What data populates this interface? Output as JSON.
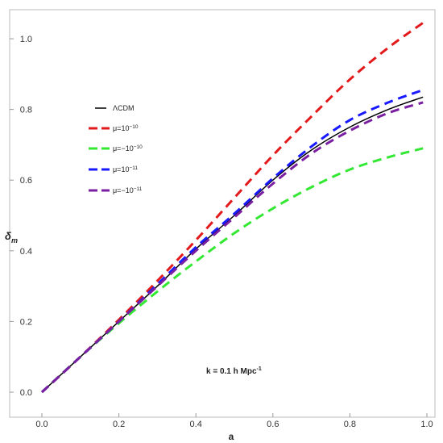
{
  "chart_data": {
    "type": "line",
    "xlabel": "a",
    "ylabel_main": "δ",
    "ylabel_sub": "m",
    "xlim": [
      0.0,
      1.0
    ],
    "ylim": [
      0.0,
      1.08
    ],
    "x_ticks": [
      0.0,
      0.2,
      0.4,
      0.6,
      0.8,
      1.0
    ],
    "x_tick_labels": [
      "0.0",
      "0.2",
      "0.4",
      "0.6",
      "0.8",
      "1.0"
    ],
    "y_ticks": [
      0.0,
      0.2,
      0.4,
      0.6,
      0.8,
      1.0
    ],
    "y_tick_labels": [
      "0.0",
      "0.2",
      "0.4",
      "0.6",
      "0.8",
      "1.0"
    ],
    "grid": false,
    "legend_placement": "upper-left",
    "annotation": {
      "main": "k = 0.1 h Mpc",
      "sup": "-1"
    },
    "series": [
      {
        "name": "ΛCDM",
        "legend_parts": [
          {
            "t": "ΛCDM"
          }
        ],
        "color": "#000000",
        "dashed": false,
        "x": [
          0.0,
          0.1,
          0.2,
          0.3,
          0.4,
          0.5,
          0.6,
          0.7,
          0.8,
          0.9,
          0.99
        ],
        "y": [
          0.0,
          0.1,
          0.2,
          0.3,
          0.405,
          0.5,
          0.6,
          0.685,
          0.75,
          0.8,
          0.835
        ]
      },
      {
        "name": "μ=10^-10",
        "legend_parts": [
          {
            "t": "μ=10"
          },
          {
            "t": "−10",
            "sup": true
          }
        ],
        "color": "#e31a1c",
        "dashed": true,
        "x": [
          0.0,
          0.1,
          0.2,
          0.3,
          0.4,
          0.5,
          0.6,
          0.7,
          0.8,
          0.9,
          0.99
        ],
        "y": [
          0.0,
          0.1,
          0.205,
          0.315,
          0.43,
          0.55,
          0.67,
          0.78,
          0.885,
          0.975,
          1.045
        ]
      },
      {
        "name": "μ=−10^-10",
        "legend_parts": [
          {
            "t": "μ=−10"
          },
          {
            "t": "−10",
            "sup": true
          }
        ],
        "color": "#33e833",
        "dashed": true,
        "x": [
          0.0,
          0.1,
          0.2,
          0.3,
          0.4,
          0.5,
          0.6,
          0.7,
          0.8,
          0.9,
          0.99
        ],
        "y": [
          0.0,
          0.1,
          0.195,
          0.285,
          0.37,
          0.45,
          0.52,
          0.58,
          0.63,
          0.665,
          0.69
        ]
      },
      {
        "name": "μ=10^-11",
        "legend_parts": [
          {
            "t": "μ=10"
          },
          {
            "t": "−11",
            "sup": true
          }
        ],
        "color": "#1a1aff",
        "dashed": true,
        "x": [
          0.0,
          0.1,
          0.2,
          0.3,
          0.4,
          0.5,
          0.6,
          0.7,
          0.8,
          0.9,
          0.99
        ],
        "y": [
          0.0,
          0.1,
          0.2,
          0.305,
          0.41,
          0.505,
          0.605,
          0.695,
          0.77,
          0.82,
          0.855
        ]
      },
      {
        "name": "μ=−10^-11",
        "legend_parts": [
          {
            "t": "μ=−10"
          },
          {
            "t": "−11",
            "sup": true
          }
        ],
        "color": "#7a1fa2",
        "dashed": true,
        "x": [
          0.0,
          0.1,
          0.2,
          0.3,
          0.4,
          0.5,
          0.6,
          0.7,
          0.8,
          0.9,
          0.99
        ],
        "y": [
          0.0,
          0.1,
          0.2,
          0.3,
          0.4,
          0.495,
          0.59,
          0.675,
          0.74,
          0.79,
          0.82
        ]
      }
    ]
  }
}
